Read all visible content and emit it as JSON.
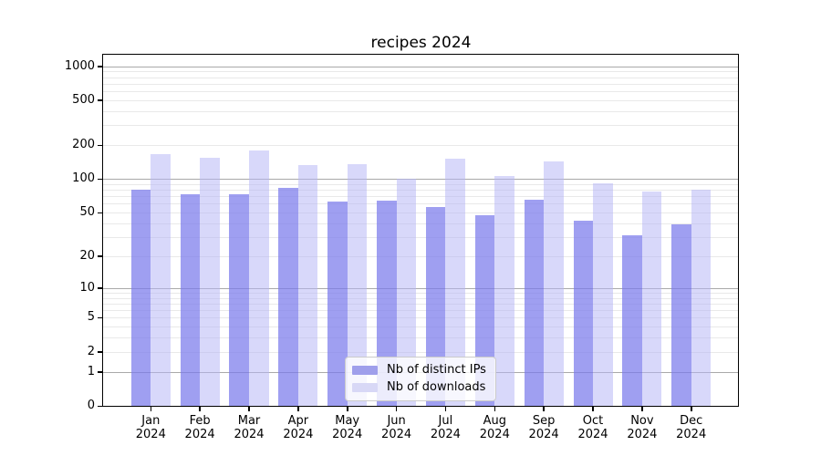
{
  "chart_data": {
    "type": "bar",
    "title": "recipes 2024",
    "categories": [
      {
        "month": "Jan",
        "year": "2024"
      },
      {
        "month": "Feb",
        "year": "2024"
      },
      {
        "month": "Mar",
        "year": "2024"
      },
      {
        "month": "Apr",
        "year": "2024"
      },
      {
        "month": "May",
        "year": "2024"
      },
      {
        "month": "Jun",
        "year": "2024"
      },
      {
        "month": "Jul",
        "year": "2024"
      },
      {
        "month": "Aug",
        "year": "2024"
      },
      {
        "month": "Sep",
        "year": "2024"
      },
      {
        "month": "Oct",
        "year": "2024"
      },
      {
        "month": "Nov",
        "year": "2024"
      },
      {
        "month": "Dec",
        "year": "2024"
      }
    ],
    "series": [
      {
        "name": "Nb of distinct IPs",
        "key": "distinct-ips",
        "fill": "rgba(122,122,235,0.72)",
        "color_hex": "#9f9feb",
        "values": [
          81,
          73,
          73,
          84,
          63,
          64,
          56,
          47,
          65,
          42,
          31,
          39
        ]
      },
      {
        "name": "Nb of downloads",
        "key": "downloads",
        "fill": "rgba(180,180,246,0.52)",
        "color_hex": "#d8d8f6",
        "values": [
          167,
          154,
          179,
          134,
          135,
          100,
          153,
          107,
          144,
          92,
          77,
          80
        ]
      }
    ],
    "y_axis": {
      "scale": "log1p",
      "ylim": [
        0,
        1264
      ],
      "ticks": [
        0,
        1,
        2,
        5,
        10,
        20,
        50,
        100,
        200,
        500,
        1000
      ],
      "major_gridlines": [
        1,
        10,
        100,
        1000
      ],
      "minor_gridlines": [
        2,
        3,
        4,
        5,
        6,
        7,
        8,
        9,
        20,
        30,
        40,
        50,
        60,
        70,
        80,
        90,
        200,
        300,
        400,
        500,
        600,
        700,
        800,
        900
      ],
      "grid_major_color": "#a9a9a9",
      "grid_minor_color": "#e9e9e9"
    },
    "xlabel": "",
    "ylabel": "",
    "grid": true,
    "legend_position": "lower center"
  }
}
